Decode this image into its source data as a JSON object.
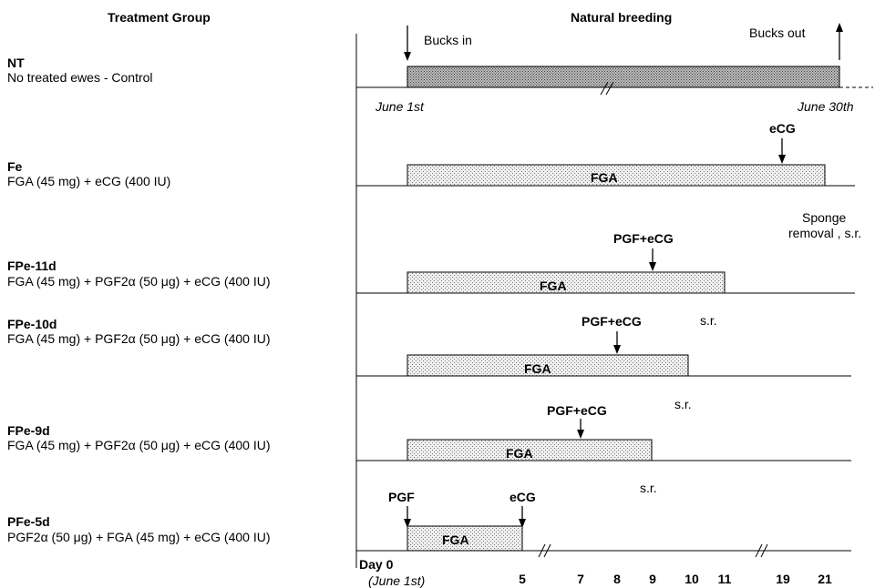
{
  "headers": {
    "treatment_group": "Treatment Group",
    "natural_breeding": "Natural breeding"
  },
  "groups": [
    {
      "name": "NT",
      "desc": "No treated ewes - Control"
    },
    {
      "name": "Fe",
      "desc": "FGA (45 mg) + eCG (400 IU)"
    },
    {
      "name": "FPe-11d",
      "desc": "FGA (45 mg) + PGF2α (50 μg) + eCG (400 IU)"
    },
    {
      "name": "FPe-10d",
      "desc": "FGA (45 mg) + PGF2α (50 μg) + eCG (400 IU)"
    },
    {
      "name": "FPe-9d",
      "desc": "FGA (45 mg) + PGF2α (50 μg) + eCG (400 IU)"
    },
    {
      "name": "PFe-5d",
      "desc": "PGF2α (50 μg) + FGA (45 mg) + eCG (400 IU)"
    }
  ],
  "timeline": {
    "bucks_in": "Bucks in",
    "bucks_out": "Bucks out",
    "june_1st": "June 1st",
    "june_30th": "June 30th",
    "day0": "Day 0",
    "day0_sub": "(June 1st)",
    "ticks": [
      "5",
      "7",
      "8",
      "9",
      "10",
      "11",
      "19",
      "21"
    ]
  },
  "labels": {
    "fga": "FGA",
    "ecg": "eCG",
    "pgf": "PGF",
    "pgf_ecg": "PGF+eCG",
    "sponge_removal_1": "Sponge",
    "sponge_removal_2": "removal , s.r.",
    "sr": "s.r."
  },
  "colors": {
    "bar_dense": "#8c8c8c",
    "bar_light": "#d9d9d9",
    "line": "#000000"
  }
}
